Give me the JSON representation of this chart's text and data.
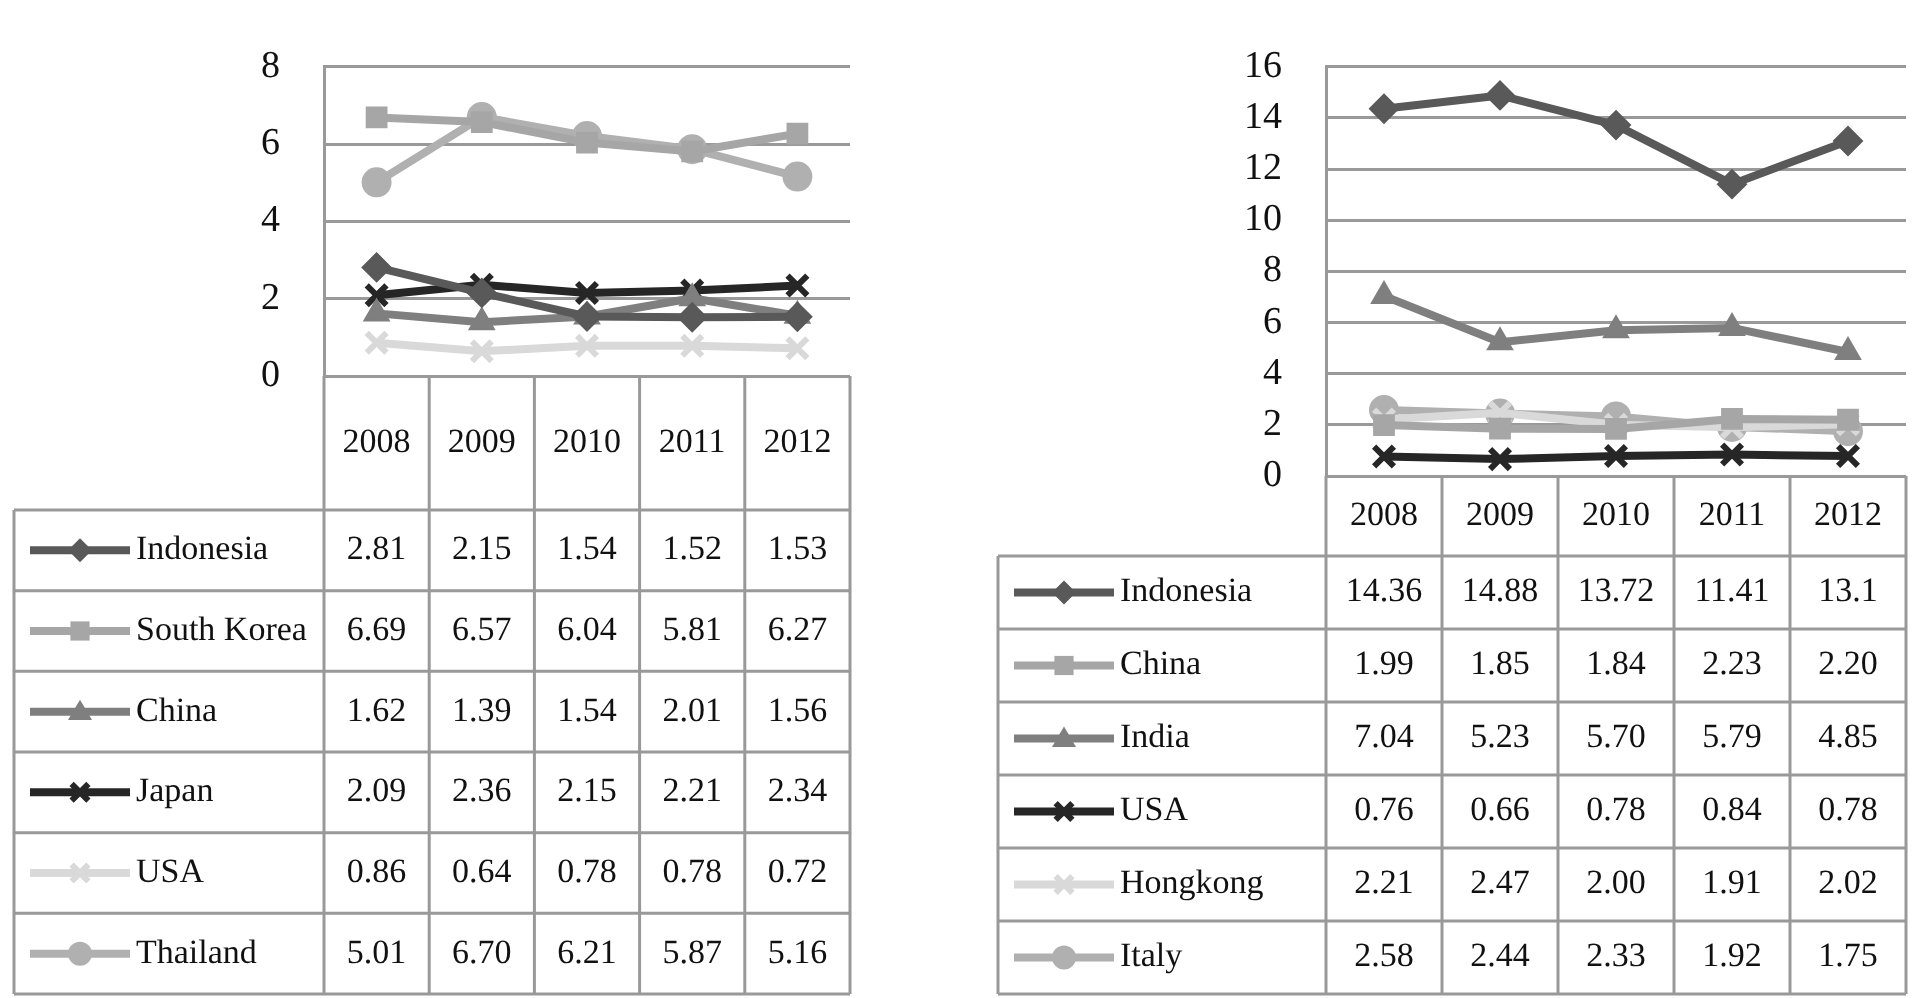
{
  "chart_data": [
    {
      "type": "line",
      "categories": [
        "2008",
        "2009",
        "2010",
        "2011",
        "2012"
      ],
      "ylim": [
        0,
        8
      ],
      "yticks": [
        0,
        2,
        4,
        6,
        8
      ],
      "grid": "y",
      "legend": "bottom",
      "series": [
        {
          "name": "Indonesia",
          "color": "#595959",
          "marker": "diamond",
          "values": [
            2.81,
            2.15,
            1.54,
            1.52,
            1.53
          ],
          "value_labels": [
            "2.81",
            "2.15",
            "1.54",
            "1.52",
            "1.53"
          ]
        },
        {
          "name": "South Korea",
          "color": "#a6a6a6",
          "marker": "square",
          "values": [
            6.69,
            6.57,
            6.04,
            5.81,
            6.27
          ],
          "value_labels": [
            "6.69",
            "6.57",
            "6.04",
            "5.81",
            "6.27"
          ]
        },
        {
          "name": "China",
          "color": "#7f7f7f",
          "marker": "triangle",
          "values": [
            1.62,
            1.39,
            1.54,
            2.01,
            1.56
          ],
          "value_labels": [
            "1.62",
            "1.39",
            "1.54",
            "2.01",
            "1.56"
          ]
        },
        {
          "name": "Japan",
          "color": "#262626",
          "marker": "cross",
          "values": [
            2.09,
            2.36,
            2.15,
            2.21,
            2.34
          ],
          "value_labels": [
            "2.09",
            "2.36",
            "2.15",
            "2.21",
            "2.34"
          ]
        },
        {
          "name": "USA",
          "color": "#d9d9d9",
          "marker": "cross",
          "values": [
            0.86,
            0.64,
            0.78,
            0.78,
            0.72
          ],
          "value_labels": [
            "0.86",
            "0.64",
            "0.78",
            "0.78",
            "0.72"
          ]
        },
        {
          "name": "Thailand",
          "color": "#b0b0b0",
          "marker": "circle",
          "values": [
            5.01,
            6.7,
            6.21,
            5.87,
            5.16
          ],
          "value_labels": [
            "5.01",
            "6.70",
            "6.21",
            "5.87",
            "5.16"
          ]
        }
      ]
    },
    {
      "type": "line",
      "categories": [
        "2008",
        "2009",
        "2010",
        "2011",
        "2012"
      ],
      "ylim": [
        0,
        16
      ],
      "yticks": [
        0,
        2,
        4,
        6,
        8,
        10,
        12,
        14,
        16
      ],
      "grid": "y",
      "legend": "bottom",
      "series": [
        {
          "name": "Indonesia",
          "color": "#595959",
          "marker": "diamond",
          "values": [
            14.36,
            14.88,
            13.72,
            11.41,
            13.1
          ],
          "value_labels": [
            "14.36",
            "14.88",
            "13.72",
            "11.41",
            "13.1"
          ]
        },
        {
          "name": "China",
          "color": "#a6a6a6",
          "marker": "square",
          "values": [
            1.99,
            1.85,
            1.84,
            2.23,
            2.2
          ],
          "value_labels": [
            "1.99",
            "1.85",
            "1.84",
            "2.23",
            "2.20"
          ]
        },
        {
          "name": "India",
          "color": "#7f7f7f",
          "marker": "triangle",
          "values": [
            7.04,
            5.23,
            5.7,
            5.79,
            4.85
          ],
          "value_labels": [
            "7.04",
            "5.23",
            "5.70",
            "5.79",
            "4.85"
          ]
        },
        {
          "name": "USA",
          "color": "#262626",
          "marker": "cross",
          "values": [
            0.76,
            0.66,
            0.78,
            0.84,
            0.78
          ],
          "value_labels": [
            "0.76",
            "0.66",
            "0.78",
            "0.84",
            "0.78"
          ]
        },
        {
          "name": "Hongkong",
          "color": "#d9d9d9",
          "marker": "cross",
          "values": [
            2.21,
            2.47,
            2.0,
            1.91,
            2.02
          ],
          "value_labels": [
            "2.21",
            "2.47",
            "2.00",
            "1.91",
            "2.02"
          ]
        },
        {
          "name": "Italy",
          "color": "#b0b0b0",
          "marker": "circle",
          "values": [
            2.58,
            2.44,
            2.33,
            1.92,
            1.75
          ],
          "value_labels": [
            "2.58",
            "2.44",
            "2.33",
            "1.92",
            "1.75"
          ]
        }
      ]
    }
  ]
}
